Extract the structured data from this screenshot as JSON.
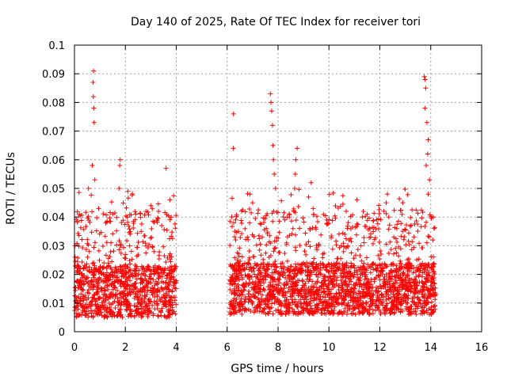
{
  "chart_data": {
    "type": "scatter",
    "title": "Day 140 of 2025, Rate Of TEC Index for receiver tori",
    "xlabel": "GPS time / hours",
    "ylabel": "ROTI / TECUs",
    "xlim": [
      0,
      16
    ],
    "ylim": [
      0,
      0.1
    ],
    "xticks": [
      0,
      2,
      4,
      6,
      8,
      10,
      12,
      14,
      16
    ],
    "xtick_labels": [
      "0",
      "2",
      "4",
      "6",
      "8",
      "10",
      "12",
      "14",
      "16"
    ],
    "yticks": [
      0,
      0.01,
      0.02,
      0.03,
      0.04,
      0.05,
      0.06,
      0.07,
      0.08,
      0.09,
      0.1
    ],
    "ytick_labels": [
      "0",
      "0.01",
      "0.02",
      "0.03",
      "0.04",
      "0.05",
      "0.06",
      "0.07",
      "0.08",
      "0.09",
      "0.1"
    ],
    "grid": true,
    "marker": "plus",
    "color": "#ff0000",
    "segments": [
      {
        "start": 0.0,
        "end": 4.0,
        "baseline": 0.014
      },
      {
        "start": 6.1,
        "end": 14.2,
        "baseline": 0.015
      }
    ],
    "highlights": [
      {
        "x": 0.75,
        "y": 0.091
      },
      {
        "x": 0.73,
        "y": 0.087
      },
      {
        "x": 0.74,
        "y": 0.082
      },
      {
        "x": 0.76,
        "y": 0.078
      },
      {
        "x": 0.77,
        "y": 0.073
      },
      {
        "x": 0.7,
        "y": 0.058
      },
      {
        "x": 0.8,
        "y": 0.053
      },
      {
        "x": 0.55,
        "y": 0.05
      },
      {
        "x": 0.95,
        "y": 0.043
      },
      {
        "x": 1.8,
        "y": 0.06
      },
      {
        "x": 1.78,
        "y": 0.058
      },
      {
        "x": 1.75,
        "y": 0.05
      },
      {
        "x": 2.1,
        "y": 0.049
      },
      {
        "x": 3.6,
        "y": 0.057
      },
      {
        "x": 3.75,
        "y": 0.046
      },
      {
        "x": 3.0,
        "y": 0.044
      },
      {
        "x": 3.3,
        "y": 0.042
      },
      {
        "x": 3.8,
        "y": 0.04
      },
      {
        "x": 6.25,
        "y": 0.076
      },
      {
        "x": 6.24,
        "y": 0.064
      },
      {
        "x": 6.3,
        "y": 0.035
      },
      {
        "x": 6.9,
        "y": 0.048
      },
      {
        "x": 7.0,
        "y": 0.045
      },
      {
        "x": 7.7,
        "y": 0.083
      },
      {
        "x": 7.72,
        "y": 0.08
      },
      {
        "x": 7.75,
        "y": 0.077
      },
      {
        "x": 7.78,
        "y": 0.072
      },
      {
        "x": 7.8,
        "y": 0.065
      },
      {
        "x": 7.82,
        "y": 0.06
      },
      {
        "x": 7.85,
        "y": 0.055
      },
      {
        "x": 7.9,
        "y": 0.05
      },
      {
        "x": 8.75,
        "y": 0.064
      },
      {
        "x": 8.7,
        "y": 0.06
      },
      {
        "x": 8.68,
        "y": 0.055
      },
      {
        "x": 8.65,
        "y": 0.05
      },
      {
        "x": 9.3,
        "y": 0.052
      },
      {
        "x": 9.2,
        "y": 0.047
      },
      {
        "x": 11.1,
        "y": 0.046
      },
      {
        "x": 11.5,
        "y": 0.041
      },
      {
        "x": 12.3,
        "y": 0.048
      },
      {
        "x": 12.25,
        "y": 0.045
      },
      {
        "x": 12.35,
        "y": 0.04
      },
      {
        "x": 12.9,
        "y": 0.045
      },
      {
        "x": 13.75,
        "y": 0.089
      },
      {
        "x": 13.78,
        "y": 0.088
      },
      {
        "x": 13.8,
        "y": 0.085
      },
      {
        "x": 13.77,
        "y": 0.078
      },
      {
        "x": 13.85,
        "y": 0.073
      },
      {
        "x": 13.9,
        "y": 0.067
      },
      {
        "x": 13.88,
        "y": 0.062
      },
      {
        "x": 13.82,
        "y": 0.058
      },
      {
        "x": 13.95,
        "y": 0.053
      },
      {
        "x": 13.9,
        "y": 0.048
      },
      {
        "x": 14.1,
        "y": 0.04
      }
    ]
  }
}
